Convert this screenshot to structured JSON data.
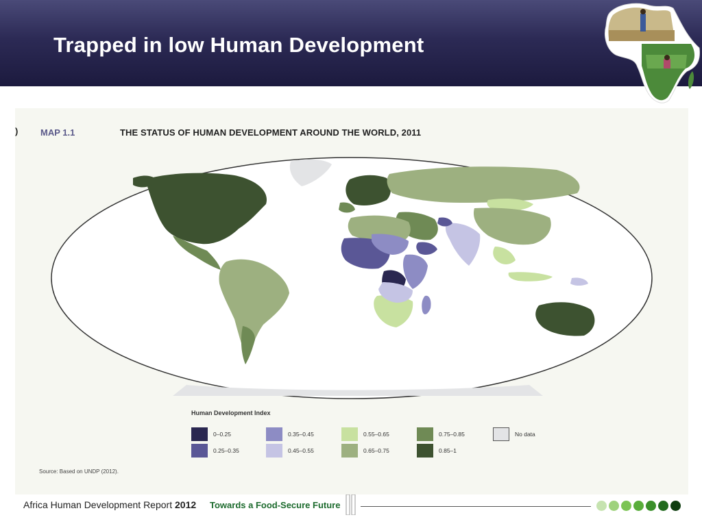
{
  "slide": {
    "title": "Trapped in low Human Development"
  },
  "map": {
    "label": "MAP 1.1",
    "title": "THE STATUS OF HUMAN DEVELOPMENT AROUND THE WORLD, 2011",
    "legend_title": "Human Development Index",
    "legend": [
      {
        "label": "0–0.25",
        "color": "#2a2750"
      },
      {
        "label": "0.25–0.35",
        "color": "#5a5796"
      },
      {
        "label": "0.35–0.45",
        "color": "#8d8cc4"
      },
      {
        "label": "0.45–0.55",
        "color": "#c5c4e4"
      },
      {
        "label": "0.55–0.65",
        "color": "#c8e1a0"
      },
      {
        "label": "0.65–0.75",
        "color": "#9db080"
      },
      {
        "label": "0.75–0.85",
        "color": "#6f8a55"
      },
      {
        "label": "0.85–1",
        "color": "#3d5230"
      },
      {
        "label": "No data",
        "color": "#e3e4e6"
      }
    ],
    "source": "Source: Based on UNDP (2012)."
  },
  "footer": {
    "report_prefix": "Africa Human Development Report",
    "report_year": "2012",
    "tagline": "Towards a Food-Secure Future",
    "dot_colors": [
      "#c6e3b0",
      "#9fd27d",
      "#7cc454",
      "#58ad3a",
      "#3a8f2a",
      "#236b1f",
      "#0f3d10"
    ]
  },
  "colors": {
    "header": "#2c2a55",
    "panel": "#f6f7f1",
    "map_outline": "#333333"
  }
}
